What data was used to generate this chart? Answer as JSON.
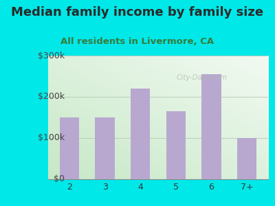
{
  "title": "Median family income by family size",
  "subtitle": "All residents in Livermore, CA",
  "categories": [
    "2",
    "3",
    "4",
    "5",
    "6",
    "7+"
  ],
  "values": [
    150000,
    150000,
    220000,
    165000,
    255000,
    100000
  ],
  "bar_color": "#b8a8d0",
  "ylim": [
    0,
    300000
  ],
  "yticks": [
    0,
    100000,
    200000,
    300000
  ],
  "ytick_labels": [
    "$0",
    "$100k",
    "$200k",
    "$300k"
  ],
  "background_outer": "#00e8e8",
  "title_color": "#2a2a2a",
  "subtitle_color": "#3a7a3a",
  "title_fontsize": 13,
  "subtitle_fontsize": 9.5,
  "watermark": "City-Data.com",
  "plot_bg_left_bottom": "#c8e8c0",
  "plot_bg_right_top": "#f4faf4"
}
